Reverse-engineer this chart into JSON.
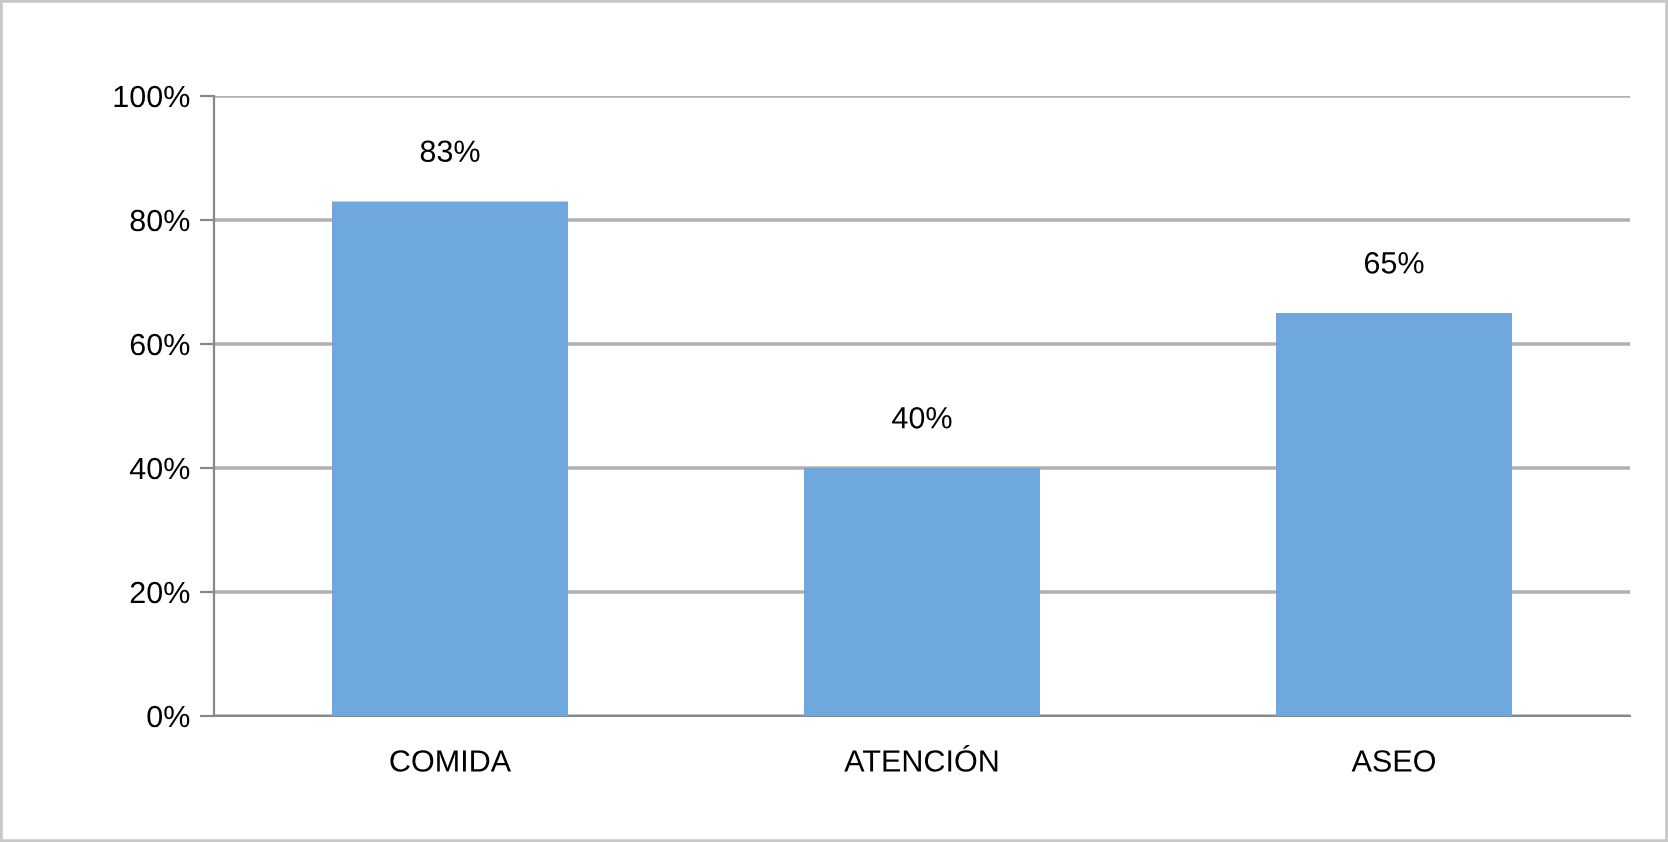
{
  "chart_data": {
    "type": "bar",
    "categories": [
      "COMIDA",
      "ATENCIÓN",
      "ASEO"
    ],
    "values": [
      83,
      40,
      65
    ],
    "value_labels": [
      "83%",
      "40%",
      "65%"
    ],
    "color": "#6ea8dc",
    "ylim": [
      0,
      100
    ],
    "yticks": [
      {
        "value": 0,
        "label": "0%"
      },
      {
        "value": 20,
        "label": "20%"
      },
      {
        "value": 40,
        "label": "40%"
      },
      {
        "value": 60,
        "label": "60%"
      },
      {
        "value": 80,
        "label": "80%"
      },
      {
        "value": 100,
        "label": "100%"
      }
    ],
    "grid": "y",
    "legend": false
  }
}
